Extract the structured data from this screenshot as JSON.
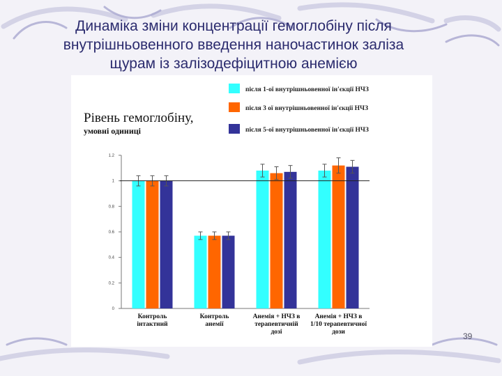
{
  "slide": {
    "title_lines": [
      "Динаміка зміни концентрації гемоглобіну після",
      "внутрішньовенного введення наночастинок заліза",
      "щурам із залізодефіцитною анемією"
    ],
    "page_number": "39"
  },
  "chart_data": {
    "type": "bar",
    "ylabel_lines": [
      "Рівень гемоглобіну,",
      "умовні одиниці"
    ],
    "ylim": [
      0,
      1.2
    ],
    "yticks": [
      "0",
      "0.2",
      "0.4",
      "0.6",
      "0.8",
      "1",
      "1.2"
    ],
    "reference_line": 1,
    "grid": false,
    "legend_position": "top-right",
    "categories": [
      [
        "Контроль",
        "інтактний"
      ],
      [
        "Контроль",
        "анемії"
      ],
      [
        "Анемія + НЧЗ в",
        "терапевтичній",
        "дозі"
      ],
      [
        "Анемія + НЧЗ в",
        "1/10 терапевтичної",
        "дози"
      ]
    ],
    "series": [
      {
        "name": "після 1-ої внутрішньовенної ін'єкції НЧЗ",
        "color": "#33ffff",
        "values": [
          1.0,
          0.57,
          1.08,
          1.08
        ],
        "errors": [
          0.04,
          0.03,
          0.05,
          0.05
        ]
      },
      {
        "name": "після 3 ої внутрішньовенної ін'єкції НЧЗ",
        "color": "#ff6600",
        "values": [
          1.0,
          0.57,
          1.06,
          1.12
        ],
        "errors": [
          0.04,
          0.03,
          0.05,
          0.06
        ]
      },
      {
        "name": "після 5-ої внутрішньовенної ін'єкції НЧЗ",
        "color": "#333399",
        "values": [
          1.0,
          0.57,
          1.07,
          1.11
        ],
        "errors": [
          0.04,
          0.03,
          0.05,
          0.05
        ]
      }
    ]
  }
}
